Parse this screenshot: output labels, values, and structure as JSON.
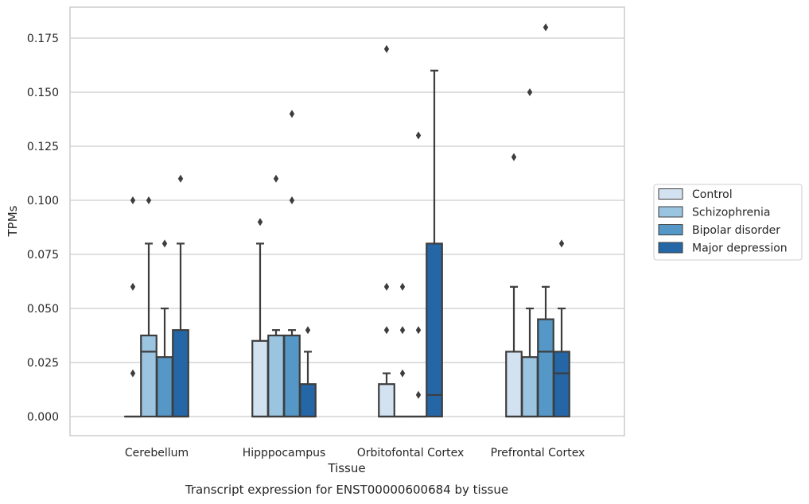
{
  "chart_data": {
    "type": "box",
    "title": "",
    "caption": "Transcript expression for ENST00000600684 by tissue",
    "xlabel": "Tissue",
    "ylabel": "TPMs",
    "ylim": [
      -0.009,
      0.19
    ],
    "yticks": [
      "0.000",
      "0.025",
      "0.050",
      "0.075",
      "0.100",
      "0.125",
      "0.150",
      "0.175"
    ],
    "grid": "horizontal",
    "legend_position": "right",
    "categories": [
      "Cerebellum",
      "Hipppocampus",
      "Orbitofontal Cortex",
      "Prefrontal Cortex"
    ],
    "series": [
      {
        "name": "Control",
        "color": "#d3e2f0",
        "boxes": [
          {
            "category": "Cerebellum",
            "min": 0,
            "q1": 0,
            "median": 0,
            "q3": 0,
            "max": 0,
            "outliers": [
              0.02,
              0.06,
              0.1
            ]
          },
          {
            "category": "Hipppocampus",
            "min": 0,
            "q1": 0,
            "median": 0,
            "q3": 0.035,
            "max": 0.08,
            "outliers": [
              0.09
            ]
          },
          {
            "category": "Orbitofontal Cortex",
            "min": 0,
            "q1": 0,
            "median": 0,
            "q3": 0.015,
            "max": 0.02,
            "outliers": [
              0.04,
              0.06,
              0.17
            ]
          },
          {
            "category": "Prefrontal Cortex",
            "min": 0,
            "q1": 0,
            "median": 0,
            "q3": 0.03,
            "max": 0.06,
            "outliers": [
              0.12
            ]
          }
        ]
      },
      {
        "name": "Schizophrenia",
        "color": "#9ac4df",
        "boxes": [
          {
            "category": "Cerebellum",
            "min": 0,
            "q1": 0,
            "median": 0.03,
            "q3": 0.0375,
            "max": 0.08,
            "outliers": [
              0.1
            ]
          },
          {
            "category": "Hipppocampus",
            "min": 0,
            "q1": 0,
            "median": 0,
            "q3": 0.0375,
            "max": 0.04,
            "outliers": [
              0.11
            ]
          },
          {
            "category": "Orbitofontal Cortex",
            "min": 0,
            "q1": 0,
            "median": 0,
            "q3": 0,
            "max": 0,
            "outliers": [
              0.02,
              0.04,
              0.06
            ]
          },
          {
            "category": "Prefrontal Cortex",
            "min": 0,
            "q1": 0,
            "median": 0,
            "q3": 0.0275,
            "max": 0.05,
            "outliers": [
              0.15
            ]
          }
        ]
      },
      {
        "name": "Bipolar disorder",
        "color": "#5597c6",
        "boxes": [
          {
            "category": "Cerebellum",
            "min": 0,
            "q1": 0,
            "median": 0,
            "q3": 0.0275,
            "max": 0.05,
            "outliers": [
              0.08
            ]
          },
          {
            "category": "Hipppocampus",
            "min": 0,
            "q1": 0,
            "median": 0,
            "q3": 0.0375,
            "max": 0.04,
            "outliers": [
              0.1,
              0.14
            ]
          },
          {
            "category": "Orbitofontal Cortex",
            "min": 0,
            "q1": 0,
            "median": 0,
            "q3": 0,
            "max": 0,
            "outliers": [
              0.01,
              0.04,
              0.13
            ]
          },
          {
            "category": "Prefrontal Cortex",
            "min": 0,
            "q1": 0,
            "median": 0.03,
            "q3": 0.045,
            "max": 0.06,
            "outliers": [
              0.18
            ]
          }
        ]
      },
      {
        "name": "Major depression",
        "color": "#2567a6",
        "boxes": [
          {
            "category": "Cerebellum",
            "min": 0,
            "q1": 0,
            "median": 0,
            "q3": 0.04,
            "max": 0.08,
            "outliers": [
              0.11
            ]
          },
          {
            "category": "Hipppocampus",
            "min": 0,
            "q1": 0,
            "median": 0,
            "q3": 0.015,
            "max": 0.03,
            "outliers": [
              0.04
            ]
          },
          {
            "category": "Orbitofontal Cortex",
            "min": 0,
            "q1": 0,
            "median": 0.01,
            "q3": 0.08,
            "max": 0.16,
            "outliers": []
          },
          {
            "category": "Prefrontal Cortex",
            "min": 0,
            "q1": 0,
            "median": 0.02,
            "q3": 0.03,
            "max": 0.05,
            "outliers": [
              0.08
            ]
          }
        ]
      }
    ]
  }
}
